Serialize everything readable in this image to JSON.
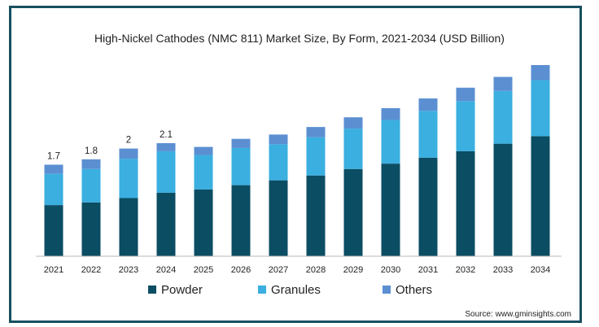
{
  "chart_data": {
    "type": "bar",
    "stacked": true,
    "title": "High-Nickel Cathodes (NMC 811) Market Size, By Form, 2021-2034 (USD Billion)",
    "categories": [
      "2021",
      "2022",
      "2023",
      "2024",
      "2025",
      "2026",
      "2027",
      "2028",
      "2029",
      "2030",
      "2031",
      "2032",
      "2033",
      "2034"
    ],
    "series": [
      {
        "name": "Powder",
        "color": "#0b4d63",
        "values": [
          0.95,
          1.0,
          1.08,
          1.18,
          1.24,
          1.32,
          1.41,
          1.5,
          1.62,
          1.72,
          1.83,
          1.95,
          2.09,
          2.23
        ]
      },
      {
        "name": "Granules",
        "color": "#3aafe0",
        "values": [
          0.58,
          0.62,
          0.73,
          0.77,
          0.64,
          0.69,
          0.67,
          0.71,
          0.75,
          0.81,
          0.87,
          0.93,
          0.98,
          1.04
        ]
      },
      {
        "name": "Others",
        "color": "#5b8fd2",
        "values": [
          0.17,
          0.18,
          0.19,
          0.15,
          0.15,
          0.17,
          0.18,
          0.19,
          0.21,
          0.22,
          0.23,
          0.25,
          0.26,
          0.28
        ]
      }
    ],
    "data_labels": [
      {
        "category": "2021",
        "text": "1.7"
      },
      {
        "category": "2022",
        "text": "1.8"
      },
      {
        "category": "2023",
        "text": "2"
      },
      {
        "category": "2024",
        "text": "2.1"
      }
    ],
    "xlabel": "",
    "ylabel": "",
    "ylim": [
      0,
      3.55
    ],
    "grid": false,
    "legend_position": "bottom"
  },
  "source": "Source: www.gminsights.com",
  "colors": {
    "frame": "#17505f",
    "axis": "#b8b8b8"
  }
}
